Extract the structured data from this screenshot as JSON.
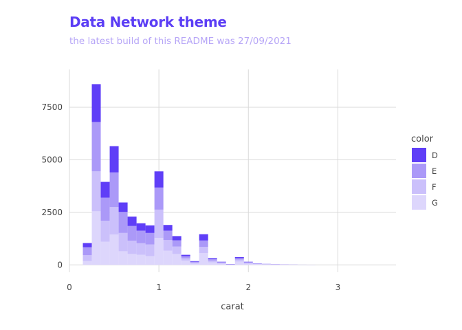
{
  "chart_data": {
    "type": "bar",
    "stacked": true,
    "title": "Data Network theme",
    "subtitle": "the latest build of this README was 27/09/2021",
    "xlabel": "carat",
    "ylabel": "",
    "xlim": [
      0,
      3.65
    ],
    "ylim": [
      -350,
      9300
    ],
    "x_ticks": [
      0,
      1,
      2,
      3
    ],
    "y_ticks": [
      0,
      2500,
      5000,
      7500
    ],
    "bin_width": 0.1,
    "bin_centers": [
      0.2,
      0.3,
      0.4,
      0.5,
      0.6,
      0.7,
      0.8,
      0.9,
      1.0,
      1.1,
      1.2,
      1.3,
      1.4,
      1.5,
      1.6,
      1.7,
      1.8,
      1.9,
      2.0,
      2.1,
      2.2,
      2.3,
      2.4,
      2.5,
      2.6,
      2.7
    ],
    "series": [
      {
        "name": "G",
        "color": "#ddd6fc",
        "values": [
          180,
          2550,
          1100,
          1450,
          650,
          520,
          480,
          420,
          1280,
          680,
          520,
          200,
          60,
          560,
          120,
          60,
          10,
          160,
          60,
          30,
          20,
          15,
          10,
          8,
          5,
          3
        ]
      },
      {
        "name": "F",
        "color": "#cbc0fb",
        "values": [
          280,
          1900,
          1000,
          1300,
          870,
          630,
          550,
          550,
          1350,
          500,
          350,
          110,
          50,
          300,
          80,
          40,
          10,
          90,
          40,
          20,
          15,
          10,
          8,
          5,
          3,
          2
        ]
      },
      {
        "name": "E",
        "color": "#ab99f8",
        "values": [
          380,
          2350,
          1100,
          1650,
          1000,
          700,
          600,
          550,
          1050,
          450,
          300,
          100,
          40,
          300,
          70,
          30,
          10,
          70,
          30,
          10,
          10,
          5,
          5,
          3,
          2,
          2
        ]
      },
      {
        "name": "D",
        "color": "#5f3ef7",
        "values": [
          200,
          1800,
          750,
          1250,
          450,
          450,
          350,
          360,
          770,
          270,
          200,
          70,
          30,
          300,
          50,
          20,
          10,
          50,
          20,
          10,
          5,
          5,
          3,
          2,
          1,
          1
        ]
      }
    ],
    "legend": {
      "title": "color",
      "position": "right",
      "order": [
        "D",
        "E",
        "F",
        "G"
      ]
    },
    "grid": true
  }
}
